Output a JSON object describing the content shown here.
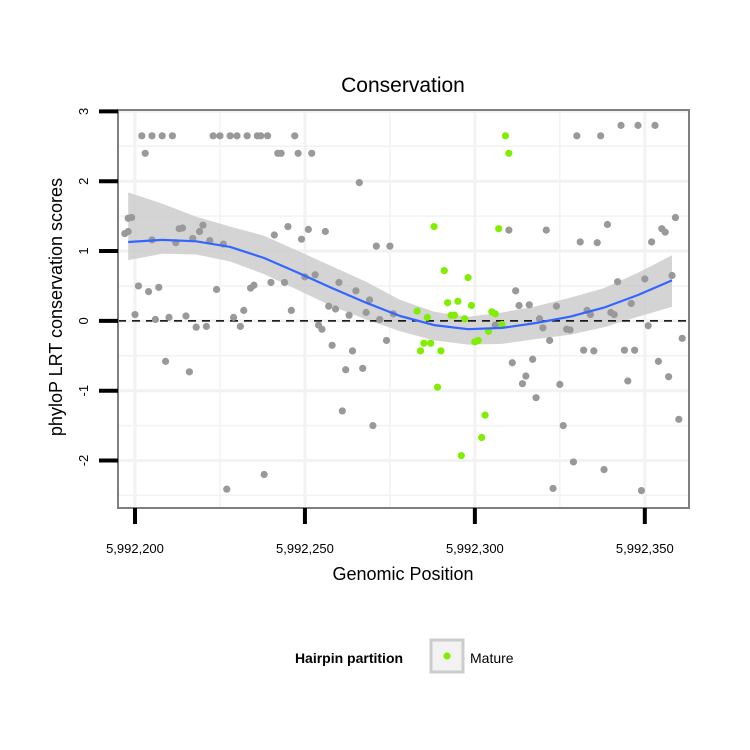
{
  "chart_data": {
    "type": "scatter",
    "title": "Conservation",
    "xlabel": "Genomic Position",
    "ylabel": "phyloP LRT conservation scores",
    "xlim": [
      5992195,
      5992363
    ],
    "ylim": [
      -2.68,
      3.02
    ],
    "x_ticks": [
      5992200,
      5992250,
      5992300,
      5992350
    ],
    "x_tick_labels": [
      "5,992,200",
      "5,992,250",
      "5,992,300",
      "5,992,350"
    ],
    "y_ticks": [
      -2,
      -1,
      0,
      1,
      2,
      3
    ],
    "y_tick_labels": [
      "-2",
      "-1",
      "0",
      "1",
      "2",
      "3"
    ],
    "reference_line": {
      "y": 0,
      "style": "dashed"
    },
    "colors": {
      "other": "#999999",
      "mature": "#80ee00",
      "smooth": "#3366ff",
      "ribbon": "#cccccc",
      "panel_border": "#7f7f7f",
      "grid": "#f2f2f2"
    },
    "legend": {
      "title": "Hairpin partition",
      "entries": [
        {
          "label": "Mature",
          "color": "#80ee00"
        }
      ],
      "position": "bottom"
    },
    "smooth": {
      "x": [
        5992198,
        5992208,
        5992218,
        5992228,
        5992238,
        5992248,
        5992258,
        5992268,
        5992278,
        5992288,
        5992298,
        5992308,
        5992318,
        5992328,
        5992338,
        5992348,
        5992358
      ],
      "y": [
        1.13,
        1.16,
        1.14,
        1.06,
        0.9,
        0.69,
        0.47,
        0.26,
        0.07,
        -0.06,
        -0.12,
        -0.1,
        -0.03,
        0.06,
        0.19,
        0.37,
        0.58
      ],
      "lower": [
        0.87,
        0.96,
        0.95,
        0.85,
        0.67,
        0.44,
        0.21,
        0.02,
        -0.15,
        -0.28,
        -0.34,
        -0.33,
        -0.26,
        -0.2,
        -0.09,
        0.06,
        0.2
      ],
      "upper": [
        1.84,
        1.68,
        1.49,
        1.35,
        1.22,
        1.0,
        0.78,
        0.56,
        0.3,
        0.13,
        0.06,
        0.12,
        0.21,
        0.33,
        0.47,
        0.69,
        0.94
      ]
    },
    "series": [
      {
        "name": "Other",
        "points": [
          [
            5992197,
            1.25
          ],
          [
            5992198,
            1.28
          ],
          [
            5992198,
            1.47
          ],
          [
            5992199,
            1.48
          ],
          [
            5992200,
            0.09
          ],
          [
            5992201,
            0.5
          ],
          [
            5992202,
            2.65
          ],
          [
            5992203,
            2.4
          ],
          [
            5992204,
            0.42
          ],
          [
            5992205,
            1.16
          ],
          [
            5992205,
            2.65
          ],
          [
            5992206,
            0.02
          ],
          [
            5992207,
            0.48
          ],
          [
            5992208,
            2.65
          ],
          [
            5992209,
            -0.58
          ],
          [
            5992210,
            0.05
          ],
          [
            5992211,
            2.65
          ],
          [
            5992212,
            1.12
          ],
          [
            5992213,
            1.32
          ],
          [
            5992214,
            1.33
          ],
          [
            5992215,
            0.07
          ],
          [
            5992216,
            -0.73
          ],
          [
            5992217,
            1.18
          ],
          [
            5992218,
            -0.09
          ],
          [
            5992219,
            1.28
          ],
          [
            5992220,
            1.37
          ],
          [
            5992221,
            -0.08
          ],
          [
            5992222,
            1.15
          ],
          [
            5992223,
            2.65
          ],
          [
            5992224,
            0.45
          ],
          [
            5992225,
            2.65
          ],
          [
            5992226,
            1.1
          ],
          [
            5992227,
            -2.41
          ],
          [
            5992228,
            2.65
          ],
          [
            5992229,
            0.05
          ],
          [
            5992230,
            2.65
          ],
          [
            5992231,
            -0.08
          ],
          [
            5992232,
            0.15
          ],
          [
            5992233,
            2.65
          ],
          [
            5992234,
            0.47
          ],
          [
            5992235,
            0.51
          ],
          [
            5992236,
            2.65
          ],
          [
            5992237,
            2.65
          ],
          [
            5992238,
            -2.2
          ],
          [
            5992239,
            2.65
          ],
          [
            5992240,
            0.55
          ],
          [
            5992241,
            1.23
          ],
          [
            5992242,
            2.4
          ],
          [
            5992243,
            2.4
          ],
          [
            5992244,
            0.55
          ],
          [
            5992245,
            1.35
          ],
          [
            5992246,
            0.15
          ],
          [
            5992247,
            2.65
          ],
          [
            5992248,
            2.4
          ],
          [
            5992249,
            1.17
          ],
          [
            5992250,
            0.63
          ],
          [
            5992251,
            1.31
          ],
          [
            5992252,
            2.4
          ],
          [
            5992253,
            0.66
          ],
          [
            5992254,
            -0.06
          ],
          [
            5992255,
            -0.12
          ],
          [
            5992256,
            1.28
          ],
          [
            5992257,
            0.21
          ],
          [
            5992258,
            -0.35
          ],
          [
            5992259,
            0.17
          ],
          [
            5992260,
            0.55
          ],
          [
            5992261,
            -1.29
          ],
          [
            5992262,
            -0.7
          ],
          [
            5992263,
            0.08
          ],
          [
            5992264,
            -0.43
          ],
          [
            5992265,
            0.43
          ],
          [
            5992266,
            1.98
          ],
          [
            5992267,
            -0.68
          ],
          [
            5992268,
            0.12
          ],
          [
            5992269,
            0.3
          ],
          [
            5992270,
            -1.5
          ],
          [
            5992271,
            1.07
          ],
          [
            5992272,
            0.02
          ],
          [
            5992274,
            -0.28
          ],
          [
            5992275,
            1.07
          ],
          [
            5992276,
            0.1
          ],
          [
            5992306,
            -0.06
          ],
          [
            5992310,
            1.3
          ],
          [
            5992311,
            -0.6
          ],
          [
            5992312,
            0.43
          ],
          [
            5992313,
            0.22
          ],
          [
            5992314,
            -0.9
          ],
          [
            5992315,
            -0.79
          ],
          [
            5992316,
            0.23
          ],
          [
            5992317,
            -0.55
          ],
          [
            5992318,
            -1.1
          ],
          [
            5992319,
            0.03
          ],
          [
            5992320,
            -0.1
          ],
          [
            5992321,
            1.3
          ],
          [
            5992322,
            -0.28
          ],
          [
            5992323,
            -2.4
          ],
          [
            5992324,
            0.21
          ],
          [
            5992325,
            -0.91
          ],
          [
            5992326,
            -1.5
          ],
          [
            5992327,
            -0.12
          ],
          [
            5992328,
            -0.13
          ],
          [
            5992329,
            -2.02
          ],
          [
            5992330,
            2.65
          ],
          [
            5992331,
            1.13
          ],
          [
            5992332,
            -0.42
          ],
          [
            5992333,
            0.15
          ],
          [
            5992334,
            0.09
          ],
          [
            5992335,
            -0.43
          ],
          [
            5992336,
            1.12
          ],
          [
            5992337,
            2.65
          ],
          [
            5992338,
            -2.13
          ],
          [
            5992339,
            1.38
          ],
          [
            5992340,
            0.12
          ],
          [
            5992341,
            0.09
          ],
          [
            5992342,
            0.56
          ],
          [
            5992343,
            2.8
          ],
          [
            5992344,
            -0.42
          ],
          [
            5992345,
            -0.86
          ],
          [
            5992346,
            0.25
          ],
          [
            5992347,
            -0.42
          ],
          [
            5992348,
            2.8
          ],
          [
            5992349,
            -2.43
          ],
          [
            5992350,
            0.6
          ],
          [
            5992351,
            -0.07
          ],
          [
            5992352,
            1.13
          ],
          [
            5992353,
            2.8
          ],
          [
            5992354,
            -0.58
          ],
          [
            5992355,
            1.32
          ],
          [
            5992356,
            1.27
          ],
          [
            5992357,
            -0.8
          ],
          [
            5992358,
            0.65
          ],
          [
            5992359,
            1.48
          ],
          [
            5992360,
            -1.41
          ],
          [
            5992361,
            -0.25
          ]
        ]
      },
      {
        "name": "Mature",
        "points": [
          [
            5992283,
            0.14
          ],
          [
            5992284,
            -0.43
          ],
          [
            5992285,
            -0.32
          ],
          [
            5992286,
            0.05
          ],
          [
            5992287,
            -0.32
          ],
          [
            5992288,
            1.35
          ],
          [
            5992289,
            -0.95
          ],
          [
            5992290,
            -0.43
          ],
          [
            5992291,
            0.72
          ],
          [
            5992292,
            0.26
          ],
          [
            5992293,
            0.08
          ],
          [
            5992294,
            0.08
          ],
          [
            5992295,
            0.28
          ],
          [
            5992296,
            -1.93
          ],
          [
            5992297,
            0.03
          ],
          [
            5992298,
            0.62
          ],
          [
            5992299,
            0.22
          ],
          [
            5992300,
            -0.3
          ],
          [
            5992301,
            -0.28
          ],
          [
            5992302,
            -1.67
          ],
          [
            5992303,
            -1.35
          ],
          [
            5992304,
            -0.15
          ],
          [
            5992305,
            0.13
          ],
          [
            5992306,
            0.1
          ],
          [
            5992307,
            1.32
          ],
          [
            5992308,
            -0.05
          ],
          [
            5992309,
            2.65
          ],
          [
            5992310,
            2.4
          ]
        ]
      }
    ]
  }
}
